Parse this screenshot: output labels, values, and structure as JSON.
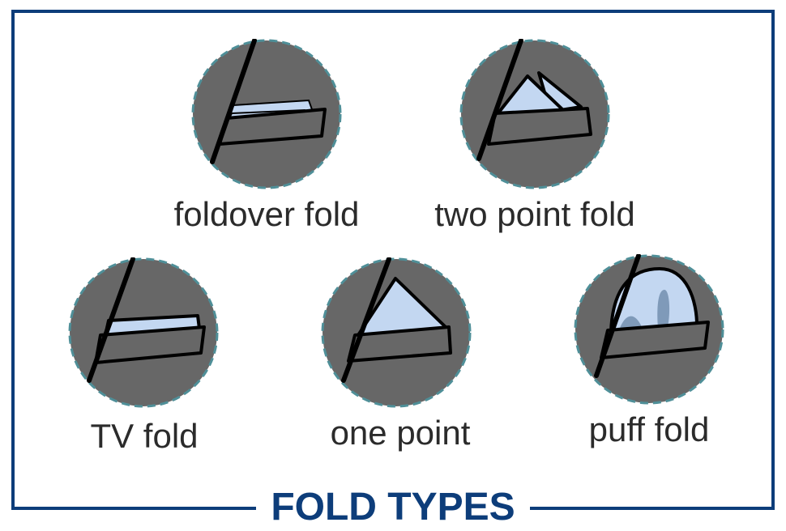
{
  "title": "FOLD TYPES",
  "colors": {
    "frame": "#0d3d7a",
    "title": "#0d3d7a",
    "circle_fill": "#676767",
    "circle_dash": "#4f8f98",
    "pocket_fill": "#676767",
    "cloth_fill": "#c3d7f1",
    "cloth_shadow": "#7f9ab9",
    "outline": "#000000",
    "label_text": "#2b2b2b"
  },
  "folds": [
    {
      "id": "foldover",
      "label": "foldover fold",
      "icon": "foldover-fold-icon"
    },
    {
      "id": "two-point",
      "label": "two point fold",
      "icon": "two-point-fold-icon"
    },
    {
      "id": "tv",
      "label": "TV fold",
      "icon": "tv-fold-icon"
    },
    {
      "id": "one-point",
      "label": "one point",
      "icon": "one-point-fold-icon"
    },
    {
      "id": "puff",
      "label": "puff fold",
      "icon": "puff-fold-icon"
    }
  ]
}
